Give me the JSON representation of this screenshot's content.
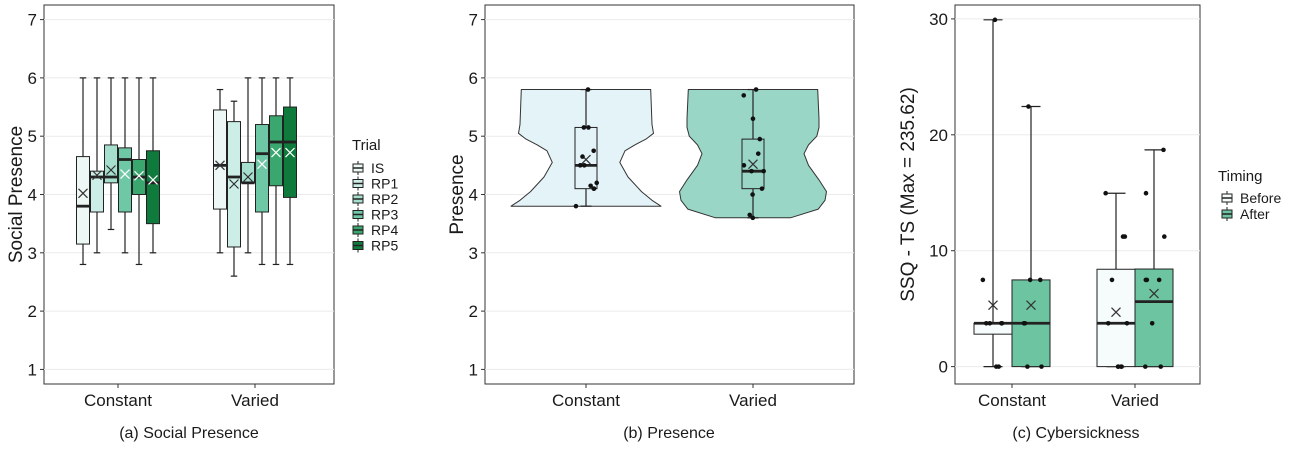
{
  "colors": {
    "IS": "#edf8f6",
    "RP1": "#cdeee6",
    "RP2": "#a7dfcf",
    "RP3": "#6ec8a6",
    "RP4": "#3aa86e",
    "RP5": "#0e7a3c",
    "violin_constant": "#e4f3f8",
    "violin_varied": "#99d6c5",
    "Before": "#f6fbfb",
    "After": "#6cc4a1",
    "gridline": "#ebebeb",
    "axis": "#333333"
  },
  "chart_data": [
    {
      "type": "box",
      "caption": "(a) Social Presence",
      "ylabel": "Social Presence",
      "xlabel": "",
      "ylim": [
        0.75,
        7.25
      ],
      "yticks": [
        1,
        2,
        3,
        4,
        5,
        6,
        7
      ],
      "grid": true,
      "categories": [
        "Constant",
        "Varied"
      ],
      "legend": {
        "title": "Trial",
        "position": "right",
        "entries": [
          "IS",
          "RP1",
          "RP2",
          "RP3",
          "RP4",
          "RP5"
        ]
      },
      "series": [
        {
          "name": "IS",
          "color": "#edf8f6",
          "boxes": [
            {
              "category": "Constant",
              "min": 2.8,
              "q1": 3.15,
              "median": 3.8,
              "q3": 4.65,
              "max": 6.0,
              "mean": 4.02
            },
            {
              "category": "Varied",
              "min": 3.0,
              "q1": 3.75,
              "median": 4.5,
              "q3": 5.45,
              "max": 5.8,
              "mean": 4.5
            }
          ]
        },
        {
          "name": "RP1",
          "color": "#cdeee6",
          "boxes": [
            {
              "category": "Constant",
              "min": 3.0,
              "q1": 3.7,
              "median": 4.3,
              "q3": 4.4,
              "max": 6.0,
              "mean": 4.33
            },
            {
              "category": "Varied",
              "min": 2.6,
              "q1": 3.1,
              "median": 4.3,
              "q3": 5.25,
              "max": 5.6,
              "mean": 4.18
            }
          ]
        },
        {
          "name": "RP2",
          "color": "#a7dfcf",
          "boxes": [
            {
              "category": "Constant",
              "min": 3.4,
              "q1": 4.2,
              "median": 4.3,
              "q3": 4.85,
              "max": 6.0,
              "mean": 4.42
            },
            {
              "category": "Varied",
              "min": 3.0,
              "q1": 4.2,
              "median": 4.2,
              "q3": 4.55,
              "max": 6.0,
              "mean": 4.3
            }
          ]
        },
        {
          "name": "RP3",
          "color": "#6ec8a6",
          "boxes": [
            {
              "category": "Constant",
              "min": 3.0,
              "q1": 3.7,
              "median": 4.6,
              "q3": 4.8,
              "max": 6.0,
              "mean": 4.35
            },
            {
              "category": "Varied",
              "min": 2.8,
              "q1": 3.7,
              "median": 4.7,
              "q3": 5.2,
              "max": 6.0,
              "mean": 4.52
            }
          ]
        },
        {
          "name": "RP4",
          "color": "#3aa86e",
          "boxes": [
            {
              "category": "Constant",
              "min": 2.8,
              "q1": 4.0,
              "median": 4.3,
              "q3": 4.6,
              "max": 6.0,
              "mean": 4.32
            },
            {
              "category": "Varied",
              "min": 2.8,
              "q1": 4.15,
              "median": 4.9,
              "q3": 5.35,
              "max": 6.0,
              "mean": 4.72
            }
          ]
        },
        {
          "name": "RP5",
          "color": "#0e7a3c",
          "boxes": [
            {
              "category": "Constant",
              "min": 3.0,
              "q1": 3.5,
              "median": 4.2,
              "q3": 4.75,
              "max": 6.0,
              "mean": 4.25
            },
            {
              "category": "Varied",
              "min": 2.8,
              "q1": 3.95,
              "median": 4.9,
              "q3": 5.5,
              "max": 6.0,
              "mean": 4.72
            }
          ]
        }
      ]
    },
    {
      "type": "violin",
      "caption": "(b) Presence",
      "ylabel": "Presence",
      "xlabel": "",
      "ylim": [
        0.75,
        7.25
      ],
      "yticks": [
        1,
        2,
        3,
        4,
        5,
        6,
        7
      ],
      "grid": true,
      "categories": [
        "Constant",
        "Varied"
      ],
      "series": [
        {
          "category": "Constant",
          "color": "#e4f3f8",
          "violin_range": [
            3.8,
            5.8
          ],
          "box": {
            "min": 3.8,
            "q1": 4.1,
            "median": 4.5,
            "q3": 5.15,
            "max": 5.8,
            "mean": 4.6
          },
          "points": [
            5.8,
            5.15,
            5.15,
            4.75,
            4.65,
            4.5,
            4.5,
            4.2,
            4.15,
            4.1,
            4.1,
            3.8
          ]
        },
        {
          "category": "Varied",
          "color": "#99d6c5",
          "violin_range": [
            3.6,
            5.8
          ],
          "box": {
            "min": 3.6,
            "q1": 4.1,
            "median": 4.4,
            "q3": 4.95,
            "max": 5.8,
            "mean": 4.52
          },
          "points": [
            5.8,
            5.7,
            5.3,
            4.95,
            4.7,
            4.5,
            4.4,
            4.4,
            4.1,
            4.0,
            3.65,
            3.6
          ]
        }
      ]
    },
    {
      "type": "box",
      "caption": "(c) Cybersickness",
      "ylabel": "SSQ - TS (Max = 235.62)",
      "xlabel": "",
      "ylim": [
        -1.5,
        31.2
      ],
      "yticks": [
        0,
        10,
        20,
        30
      ],
      "grid": true,
      "categories": [
        "Constant",
        "Varied"
      ],
      "legend": {
        "title": "Timing",
        "position": "right",
        "entries": [
          "Before",
          "After"
        ]
      },
      "series": [
        {
          "name": "Before",
          "color": "#f6fbfb",
          "boxes": [
            {
              "category": "Constant",
              "min": 0,
              "q1": 2.8,
              "median": 3.74,
              "q3": 3.74,
              "max": 29.92,
              "mean": 5.3,
              "points": [
                29.92,
                7.48,
                3.74,
                3.74,
                3.74,
                3.74,
                0,
                0
              ]
            },
            {
              "category": "Varied",
              "min": 0,
              "q1": 0,
              "median": 3.74,
              "q3": 8.4,
              "max": 14.96,
              "mean": 4.7,
              "points": [
                14.96,
                11.22,
                11.22,
                7.48,
                3.74,
                3.74,
                0,
                0,
                0,
                0
              ]
            }
          ]
        },
        {
          "name": "After",
          "color": "#6cc4a1",
          "boxes": [
            {
              "category": "Constant",
              "min": 0,
              "q1": 0,
              "median": 3.74,
              "q3": 7.48,
              "max": 22.44,
              "mean": 5.3,
              "points": [
                22.44,
                7.48,
                7.48,
                3.74,
                3.74,
                0,
                0
              ]
            },
            {
              "category": "Varied",
              "min": 0,
              "q1": 0,
              "median": 5.61,
              "q3": 8.42,
              "max": 18.7,
              "mean": 6.3,
              "points": [
                18.7,
                14.96,
                11.22,
                7.48,
                7.48,
                7.48,
                3.74,
                0,
                0
              ]
            }
          ]
        }
      ]
    }
  ]
}
